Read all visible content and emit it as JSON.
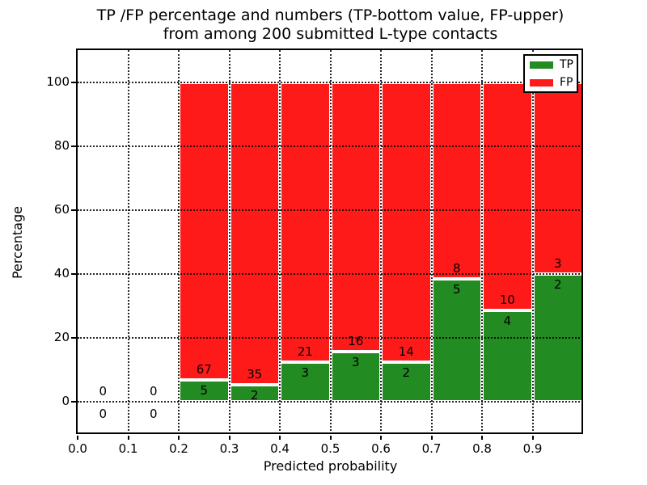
{
  "title": {
    "line1": "TP /FP percentage and numbers (TP-bottom value, FP-upper)",
    "line2": "from among 200 submitted L-type contacts"
  },
  "axes": {
    "x_label": "Predicted probability",
    "y_label": "Percentage"
  },
  "legend": {
    "items": [
      {
        "label": "TP",
        "color": "#228b22"
      },
      {
        "label": "FP",
        "color": "#ff1a1a"
      }
    ]
  },
  "colors": {
    "tp": "#228b22",
    "fp": "#ff1a1a",
    "background": "#ffffff",
    "grid": "#000000"
  },
  "chart_data": {
    "type": "bar",
    "stacked": true,
    "title": "TP /FP percentage and numbers (TP-bottom value, FP-upper) from among 200 submitted L-type contacts",
    "xlabel": "Predicted probability",
    "ylabel": "Percentage",
    "xlim": [
      0.0,
      1.0
    ],
    "ylim": [
      -10,
      110
    ],
    "x_ticks": [
      "0.0",
      "0.1",
      "0.2",
      "0.3",
      "0.4",
      "0.5",
      "0.6",
      "0.7",
      "0.8",
      "0.9"
    ],
    "y_ticks": [
      0,
      20,
      40,
      60,
      80,
      100
    ],
    "grid": true,
    "legend_position": "upper right",
    "total_submitted": 200,
    "series": [
      {
        "name": "TP",
        "color": "#228b22"
      },
      {
        "name": "FP",
        "color": "#ff1a1a"
      }
    ],
    "bins": [
      {
        "x_range": [
          0.0,
          0.1
        ],
        "tp_count": 0,
        "fp_count": 0,
        "tp_pct": 0,
        "fp_pct": 0
      },
      {
        "x_range": [
          0.1,
          0.2
        ],
        "tp_count": 0,
        "fp_count": 0,
        "tp_pct": 0,
        "fp_pct": 0
      },
      {
        "x_range": [
          0.2,
          0.3
        ],
        "tp_count": 5,
        "fp_count": 67,
        "tp_pct": 6.94,
        "fp_pct": 93.06
      },
      {
        "x_range": [
          0.3,
          0.4
        ],
        "tp_count": 2,
        "fp_count": 35,
        "tp_pct": 5.41,
        "fp_pct": 94.59
      },
      {
        "x_range": [
          0.4,
          0.5
        ],
        "tp_count": 3,
        "fp_count": 21,
        "tp_pct": 12.5,
        "fp_pct": 87.5
      },
      {
        "x_range": [
          0.5,
          0.6
        ],
        "tp_count": 3,
        "fp_count": 16,
        "tp_pct": 15.79,
        "fp_pct": 84.21
      },
      {
        "x_range": [
          0.6,
          0.7
        ],
        "tp_count": 2,
        "fp_count": 14,
        "tp_pct": 12.5,
        "fp_pct": 87.5
      },
      {
        "x_range": [
          0.7,
          0.8
        ],
        "tp_count": 5,
        "fp_count": 8,
        "tp_pct": 38.46,
        "fp_pct": 61.54
      },
      {
        "x_range": [
          0.8,
          0.9
        ],
        "tp_count": 4,
        "fp_count": 10,
        "tp_pct": 28.57,
        "fp_pct": 71.43
      },
      {
        "x_range": [
          0.9,
          1.0
        ],
        "tp_count": 2,
        "fp_count": 3,
        "tp_pct": 40.0,
        "fp_pct": 60.0
      }
    ]
  }
}
